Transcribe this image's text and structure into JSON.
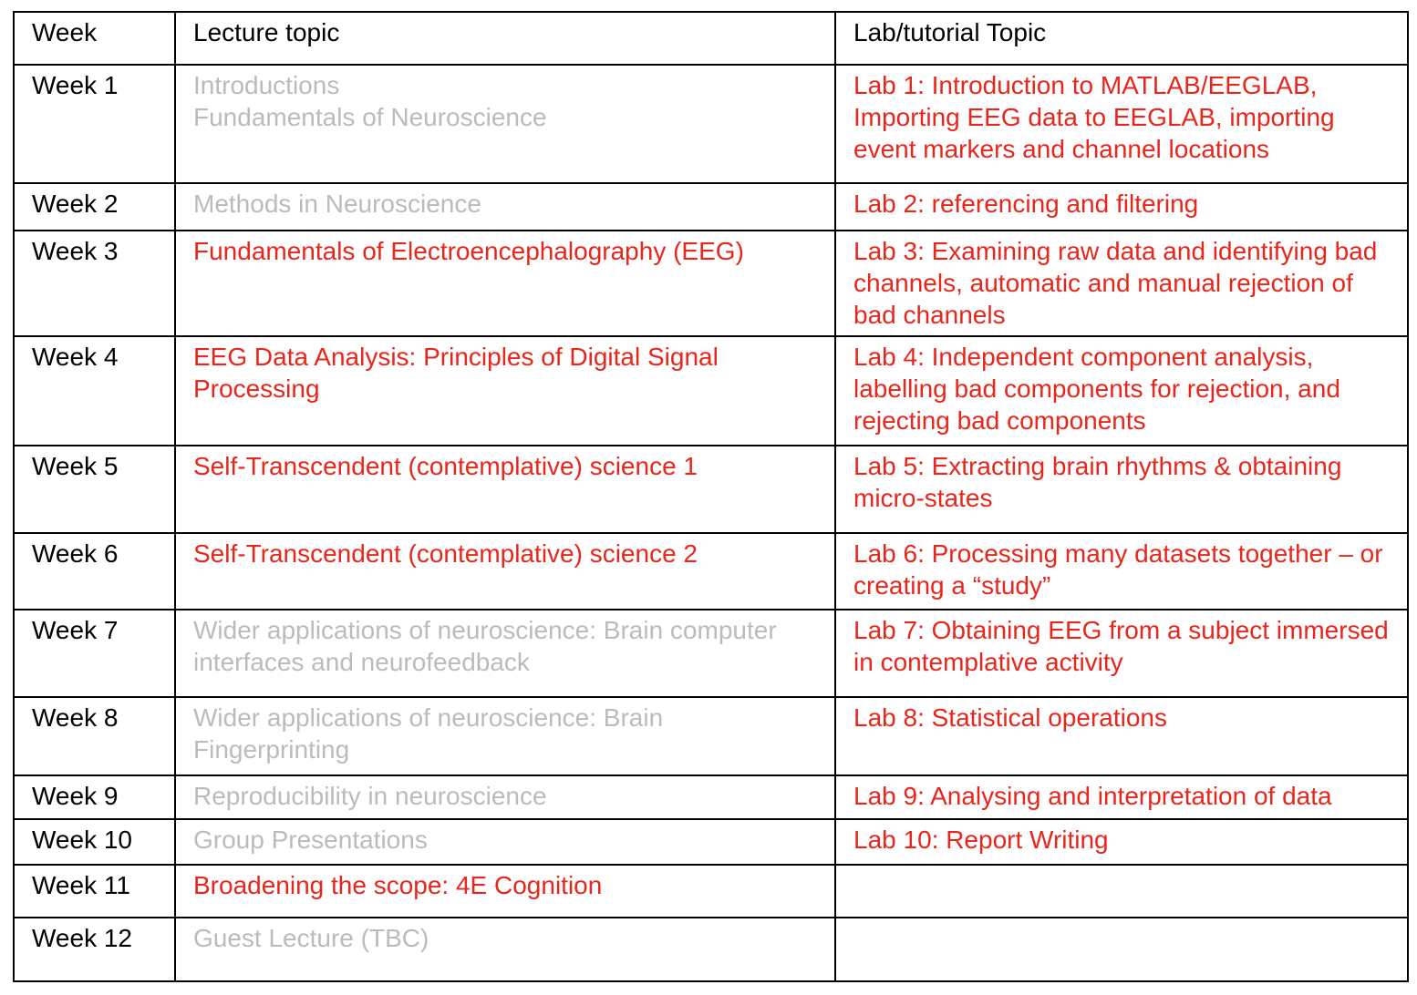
{
  "colors": {
    "header_text": "#000000",
    "week_text": "#000000",
    "muted_text": "#bbbbbb",
    "highlight_text": "#e8261b",
    "border": "#000000"
  },
  "header": {
    "week": "Week",
    "lecture": "Lecture topic",
    "lab": "Lab/tutorial Topic"
  },
  "rows": [
    {
      "week": "Week 1",
      "lecture_lines": [
        "Introductions",
        "Fundamentals of Neuroscience"
      ],
      "lecture_style": "grey",
      "lab": "Lab 1: Introduction to MATLAB/EEGLAB, Importing EEG data to EEGLAB, importing event markers and channel locations",
      "lab_style": "red"
    },
    {
      "week": "Week 2",
      "lecture_lines": [
        "Methods in Neuroscience"
      ],
      "lecture_style": "grey",
      "lab": "Lab 2: referencing and filtering",
      "lab_style": "red"
    },
    {
      "week": "Week 3",
      "lecture_lines": [
        "Fundamentals of Electroencephalography (EEG)"
      ],
      "lecture_style": "red",
      "lab": "Lab 3: Examining raw data and identifying bad channels, automatic and manual rejection of bad channels",
      "lab_style": "red"
    },
    {
      "week": "Week 4",
      "lecture_lines": [
        "EEG Data Analysis: Principles of Digital Signal Processing"
      ],
      "lecture_style": "red",
      "lab": "Lab 4: Independent component analysis, labelling bad components for rejection, and rejecting bad components",
      "lab_style": "red"
    },
    {
      "week": "Week 5",
      "lecture_lines": [
        "Self-Transcendent (contemplative) science 1"
      ],
      "lecture_style": "red",
      "lab": "Lab 5: Extracting brain rhythms & obtaining micro-states",
      "lab_style": "red"
    },
    {
      "week": "Week 6",
      "lecture_lines": [
        "Self-Transcendent (contemplative) science 2"
      ],
      "lecture_style": "red",
      "lab": "Lab 6: Processing many datasets together – or creating a “study”",
      "lab_style": "red"
    },
    {
      "week": "Week 7",
      "lecture_lines": [
        "Wider applications of neuroscience: Brain computer interfaces and neurofeedback"
      ],
      "lecture_style": "grey",
      "lab": "Lab 7: Obtaining EEG from a subject immersed in contemplative activity",
      "lab_style": "red"
    },
    {
      "week": "Week 8",
      "lecture_lines": [
        "Wider applications of neuroscience: Brain Fingerprinting"
      ],
      "lecture_style": "grey",
      "lab": "Lab 8: Statistical operations",
      "lab_style": "red"
    },
    {
      "week": "Week 9",
      "lecture_lines": [
        "Reproducibility in neuroscience"
      ],
      "lecture_style": "grey",
      "lab": "Lab 9: Analysing and interpretation of data",
      "lab_style": "red"
    },
    {
      "week": "Week 10",
      "lecture_lines": [
        "Group Presentations"
      ],
      "lecture_style": "grey",
      "lab": "Lab 10: Report Writing",
      "lab_style": "red"
    },
    {
      "week": "Week 11",
      "lecture_lines": [
        "Broadening the scope: 4E Cognition"
      ],
      "lecture_style": "red",
      "lab": "",
      "lab_style": "red"
    },
    {
      "week": "Week 12",
      "lecture_lines": [
        "Guest Lecture (TBC)"
      ],
      "lecture_style": "grey",
      "lab": "",
      "lab_style": "red"
    }
  ]
}
